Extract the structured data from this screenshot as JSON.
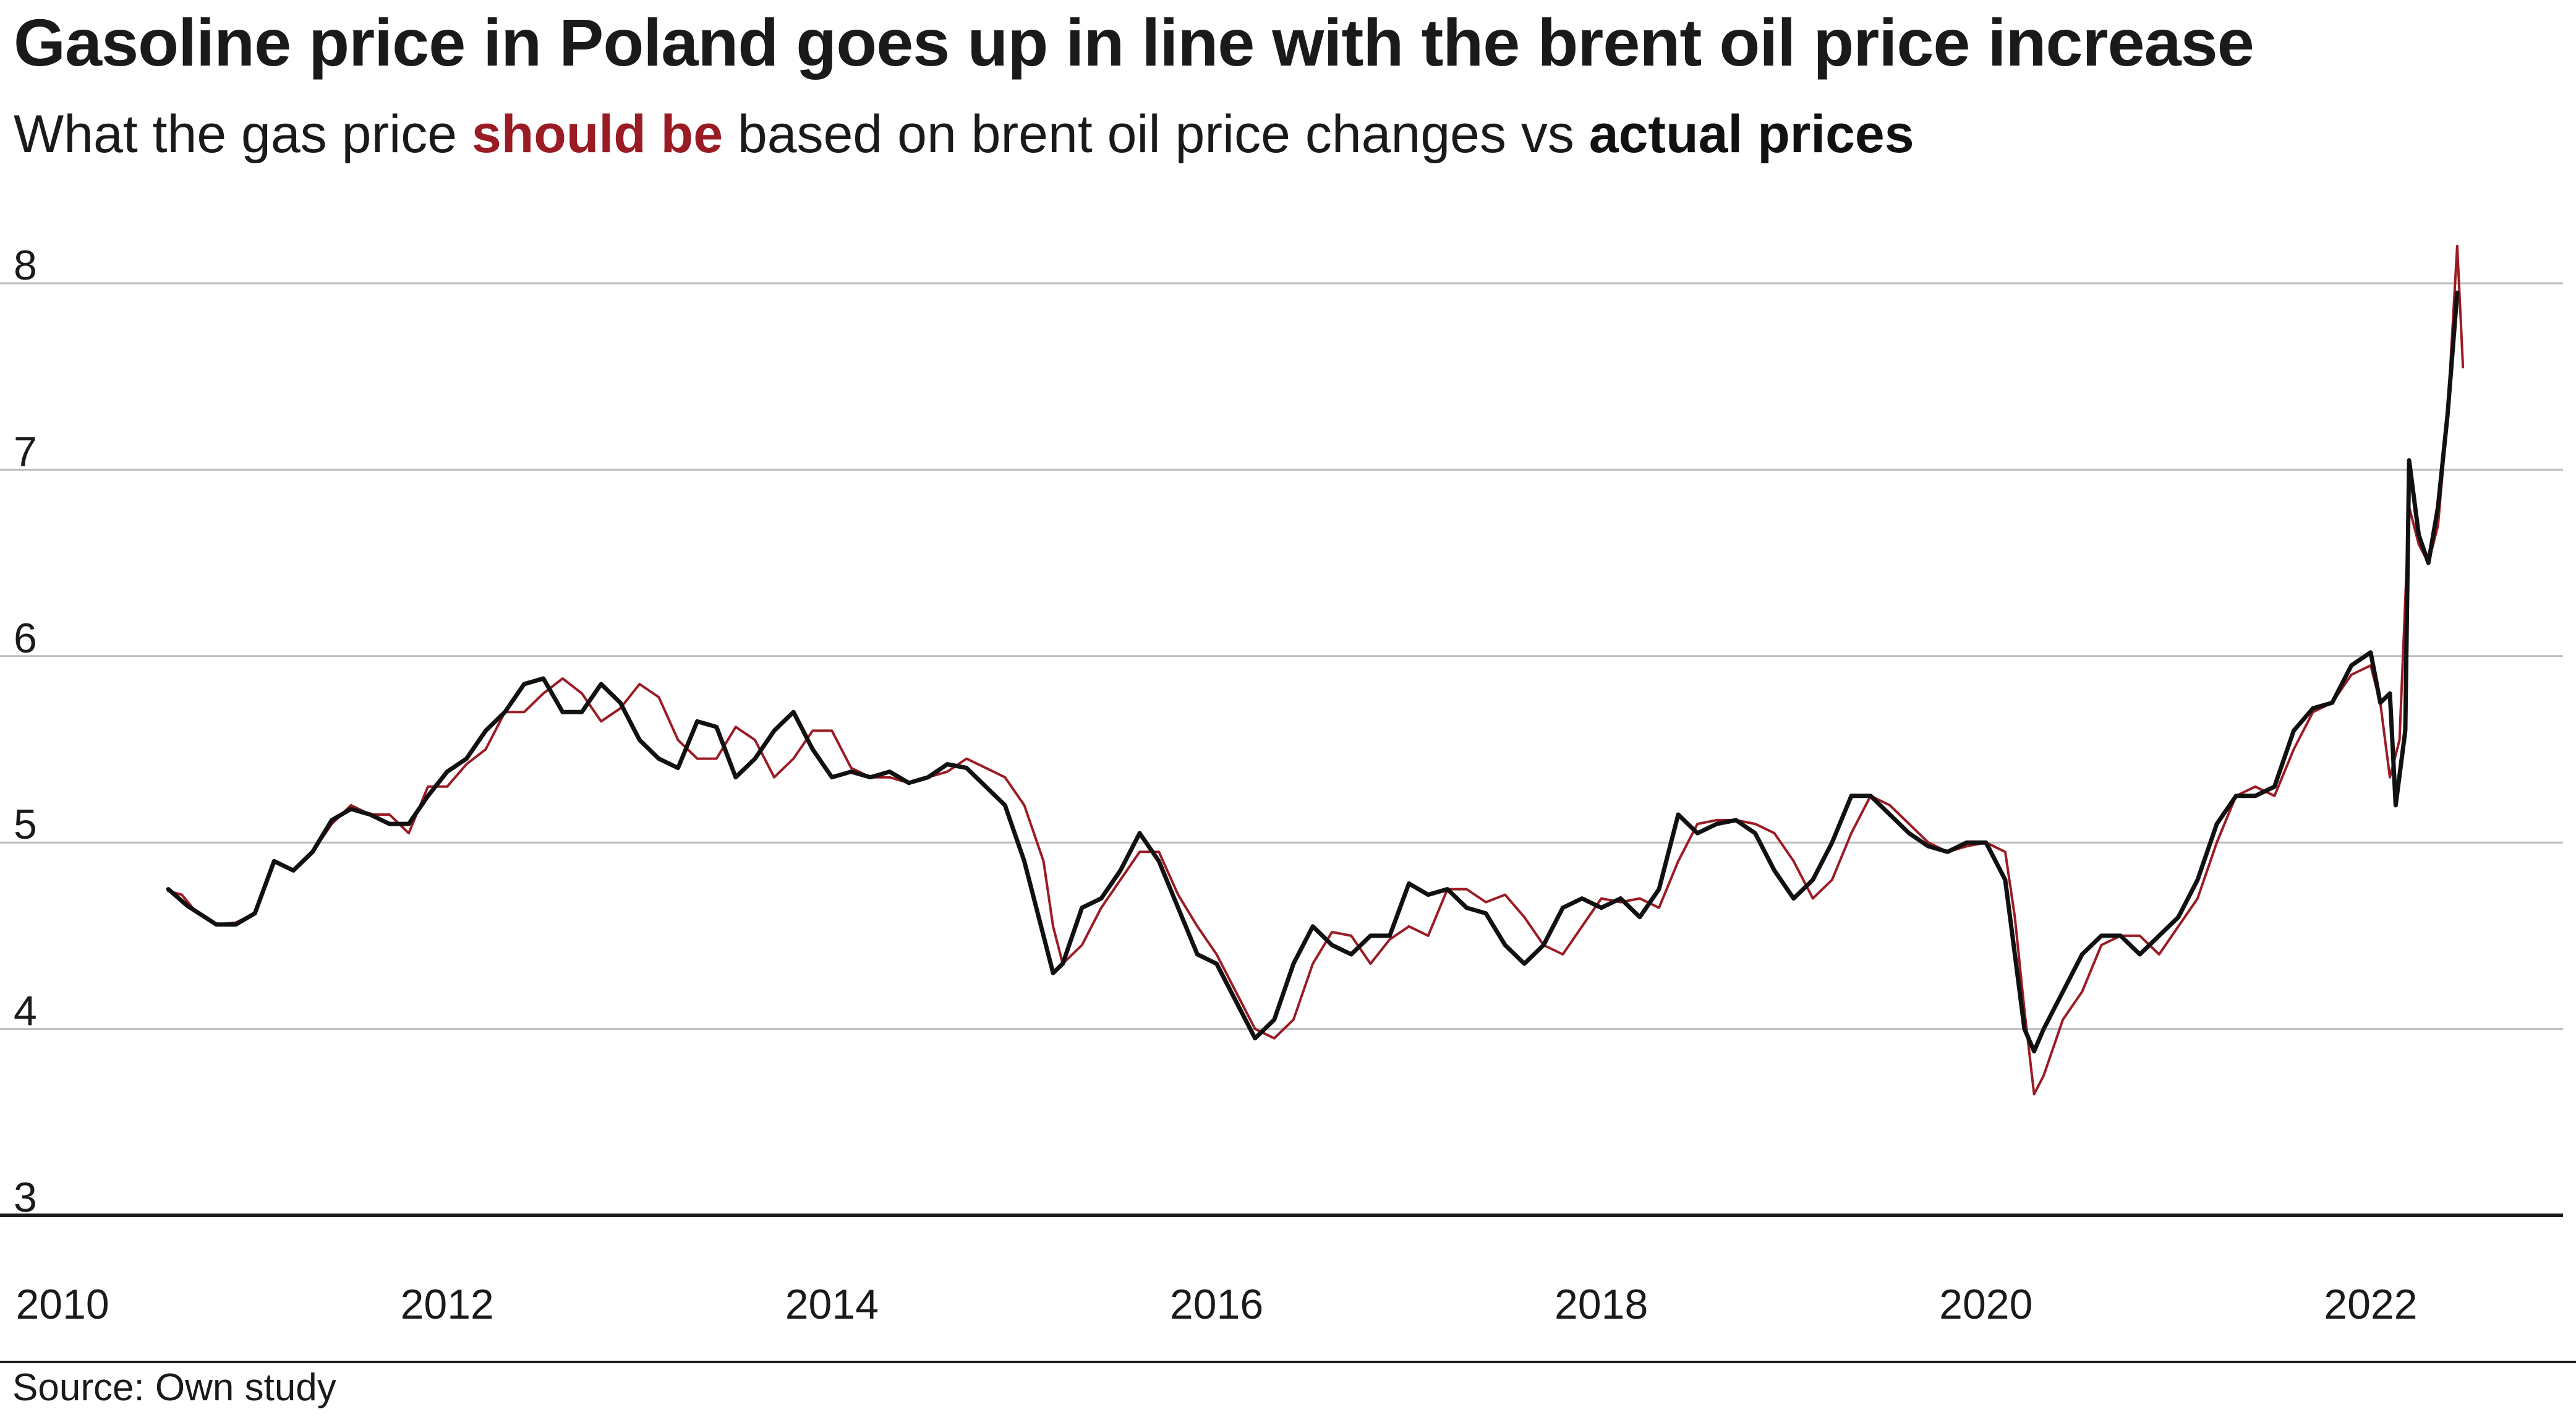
{
  "title": "Gasoline price in Poland goes up in line with the brent oil price increase",
  "subtitle": {
    "pre": "What the gas price ",
    "highlight": "should be",
    "mid": " based on brent oil price changes vs ",
    "emphasis": "actual prices"
  },
  "colors": {
    "should_be": "#9b1b24",
    "actual": "#111111",
    "grid": "#bdbdbd",
    "axis": "#1a1a1a"
  },
  "source": "Source: Own study",
  "chart_data": {
    "type": "line",
    "xlim": [
      2009.9,
      2023.0
    ],
    "ylim": [
      3,
      8
    ],
    "x_ticks": [
      "2010",
      "2012",
      "2014",
      "2016",
      "2018",
      "2020",
      "2022"
    ],
    "y_ticks": [
      "3",
      "4",
      "5",
      "6",
      "7",
      "8"
    ],
    "grid": "horizontal",
    "legend": "in subtitle",
    "series": [
      {
        "name": "should be",
        "color": "#9b1b24",
        "points": [
          [
            2010.55,
            4.74
          ],
          [
            2010.62,
            4.72
          ],
          [
            2010.7,
            4.62
          ],
          [
            2010.8,
            4.56
          ],
          [
            2010.9,
            4.57
          ],
          [
            2011.0,
            4.62
          ],
          [
            2011.1,
            4.9
          ],
          [
            2011.2,
            4.85
          ],
          [
            2011.3,
            4.95
          ],
          [
            2011.4,
            5.1
          ],
          [
            2011.5,
            5.2
          ],
          [
            2011.6,
            5.15
          ],
          [
            2011.7,
            5.15
          ],
          [
            2011.8,
            5.05
          ],
          [
            2011.9,
            5.3
          ],
          [
            2012.0,
            5.3
          ],
          [
            2012.1,
            5.42
          ],
          [
            2012.2,
            5.5
          ],
          [
            2012.3,
            5.7
          ],
          [
            2012.4,
            5.7
          ],
          [
            2012.5,
            5.8
          ],
          [
            2012.6,
            5.88
          ],
          [
            2012.7,
            5.8
          ],
          [
            2012.8,
            5.65
          ],
          [
            2012.9,
            5.72
          ],
          [
            2013.0,
            5.85
          ],
          [
            2013.1,
            5.78
          ],
          [
            2013.2,
            5.55
          ],
          [
            2013.3,
            5.45
          ],
          [
            2013.4,
            5.45
          ],
          [
            2013.5,
            5.62
          ],
          [
            2013.6,
            5.55
          ],
          [
            2013.7,
            5.35
          ],
          [
            2013.8,
            5.45
          ],
          [
            2013.9,
            5.6
          ],
          [
            2014.0,
            5.6
          ],
          [
            2014.1,
            5.4
          ],
          [
            2014.2,
            5.35
          ],
          [
            2014.3,
            5.35
          ],
          [
            2014.4,
            5.32
          ],
          [
            2014.5,
            5.35
          ],
          [
            2014.6,
            5.38
          ],
          [
            2014.7,
            5.45
          ],
          [
            2014.8,
            5.4
          ],
          [
            2014.9,
            5.35
          ],
          [
            2015.0,
            5.2
          ],
          [
            2015.1,
            4.9
          ],
          [
            2015.15,
            4.55
          ],
          [
            2015.2,
            4.35
          ],
          [
            2015.3,
            4.45
          ],
          [
            2015.4,
            4.65
          ],
          [
            2015.5,
            4.8
          ],
          [
            2015.6,
            4.95
          ],
          [
            2015.7,
            4.95
          ],
          [
            2015.8,
            4.72
          ],
          [
            2015.9,
            4.55
          ],
          [
            2016.0,
            4.4
          ],
          [
            2016.1,
            4.2
          ],
          [
            2016.2,
            4.0
          ],
          [
            2016.3,
            3.95
          ],
          [
            2016.4,
            4.05
          ],
          [
            2016.5,
            4.35
          ],
          [
            2016.6,
            4.52
          ],
          [
            2016.7,
            4.5
          ],
          [
            2016.8,
            4.35
          ],
          [
            2016.9,
            4.48
          ],
          [
            2017.0,
            4.55
          ],
          [
            2017.1,
            4.5
          ],
          [
            2017.2,
            4.75
          ],
          [
            2017.3,
            4.75
          ],
          [
            2017.4,
            4.68
          ],
          [
            2017.5,
            4.72
          ],
          [
            2017.6,
            4.6
          ],
          [
            2017.7,
            4.45
          ],
          [
            2017.8,
            4.4
          ],
          [
            2017.9,
            4.55
          ],
          [
            2018.0,
            4.7
          ],
          [
            2018.1,
            4.68
          ],
          [
            2018.2,
            4.7
          ],
          [
            2018.3,
            4.65
          ],
          [
            2018.4,
            4.9
          ],
          [
            2018.5,
            5.1
          ],
          [
            2018.6,
            5.12
          ],
          [
            2018.7,
            5.12
          ],
          [
            2018.8,
            5.1
          ],
          [
            2018.9,
            5.05
          ],
          [
            2019.0,
            4.9
          ],
          [
            2019.1,
            4.7
          ],
          [
            2019.2,
            4.8
          ],
          [
            2019.3,
            5.05
          ],
          [
            2019.4,
            5.25
          ],
          [
            2019.5,
            5.2
          ],
          [
            2019.6,
            5.1
          ],
          [
            2019.7,
            5.0
          ],
          [
            2019.8,
            4.95
          ],
          [
            2019.9,
            4.98
          ],
          [
            2020.0,
            5.0
          ],
          [
            2020.1,
            4.95
          ],
          [
            2020.15,
            4.6
          ],
          [
            2020.2,
            4.1
          ],
          [
            2020.25,
            3.65
          ],
          [
            2020.3,
            3.75
          ],
          [
            2020.4,
            4.05
          ],
          [
            2020.5,
            4.2
          ],
          [
            2020.6,
            4.45
          ],
          [
            2020.7,
            4.5
          ],
          [
            2020.8,
            4.5
          ],
          [
            2020.9,
            4.4
          ],
          [
            2021.0,
            4.55
          ],
          [
            2021.1,
            4.7
          ],
          [
            2021.2,
            5.0
          ],
          [
            2021.3,
            5.25
          ],
          [
            2021.4,
            5.3
          ],
          [
            2021.5,
            5.25
          ],
          [
            2021.6,
            5.5
          ],
          [
            2021.7,
            5.7
          ],
          [
            2021.8,
            5.75
          ],
          [
            2021.9,
            5.9
          ],
          [
            2022.0,
            5.95
          ],
          [
            2022.05,
            5.75
          ],
          [
            2022.1,
            5.35
          ],
          [
            2022.15,
            5.55
          ],
          [
            2022.2,
            6.8
          ],
          [
            2022.25,
            6.6
          ],
          [
            2022.3,
            6.5
          ],
          [
            2022.35,
            6.7
          ],
          [
            2022.4,
            7.3
          ],
          [
            2022.45,
            8.2
          ],
          [
            2022.48,
            7.55
          ]
        ]
      },
      {
        "name": "actual prices",
        "color": "#111111",
        "points": [
          [
            2010.55,
            4.75
          ],
          [
            2010.65,
            4.66
          ],
          [
            2010.8,
            4.56
          ],
          [
            2010.9,
            4.56
          ],
          [
            2011.0,
            4.62
          ],
          [
            2011.1,
            4.9
          ],
          [
            2011.2,
            4.85
          ],
          [
            2011.3,
            4.95
          ],
          [
            2011.4,
            5.12
          ],
          [
            2011.5,
            5.18
          ],
          [
            2011.6,
            5.15
          ],
          [
            2011.7,
            5.1
          ],
          [
            2011.8,
            5.1
          ],
          [
            2011.9,
            5.25
          ],
          [
            2012.0,
            5.38
          ],
          [
            2012.1,
            5.45
          ],
          [
            2012.2,
            5.6
          ],
          [
            2012.3,
            5.7
          ],
          [
            2012.4,
            5.85
          ],
          [
            2012.5,
            5.88
          ],
          [
            2012.6,
            5.7
          ],
          [
            2012.7,
            5.7
          ],
          [
            2012.8,
            5.85
          ],
          [
            2012.9,
            5.75
          ],
          [
            2013.0,
            5.55
          ],
          [
            2013.1,
            5.45
          ],
          [
            2013.2,
            5.4
          ],
          [
            2013.3,
            5.65
          ],
          [
            2013.4,
            5.62
          ],
          [
            2013.5,
            5.35
          ],
          [
            2013.6,
            5.45
          ],
          [
            2013.7,
            5.6
          ],
          [
            2013.8,
            5.7
          ],
          [
            2013.9,
            5.5
          ],
          [
            2014.0,
            5.35
          ],
          [
            2014.1,
            5.38
          ],
          [
            2014.2,
            5.35
          ],
          [
            2014.3,
            5.38
          ],
          [
            2014.4,
            5.32
          ],
          [
            2014.5,
            5.35
          ],
          [
            2014.6,
            5.42
          ],
          [
            2014.7,
            5.4
          ],
          [
            2014.8,
            5.3
          ],
          [
            2014.9,
            5.2
          ],
          [
            2015.0,
            4.9
          ],
          [
            2015.1,
            4.5
          ],
          [
            2015.15,
            4.3
          ],
          [
            2015.2,
            4.35
          ],
          [
            2015.3,
            4.65
          ],
          [
            2015.4,
            4.7
          ],
          [
            2015.5,
            4.85
          ],
          [
            2015.6,
            5.05
          ],
          [
            2015.7,
            4.9
          ],
          [
            2015.8,
            4.65
          ],
          [
            2015.9,
            4.4
          ],
          [
            2016.0,
            4.35
          ],
          [
            2016.1,
            4.15
          ],
          [
            2016.2,
            3.95
          ],
          [
            2016.3,
            4.05
          ],
          [
            2016.4,
            4.35
          ],
          [
            2016.5,
            4.55
          ],
          [
            2016.6,
            4.45
          ],
          [
            2016.7,
            4.4
          ],
          [
            2016.8,
            4.5
          ],
          [
            2016.9,
            4.5
          ],
          [
            2017.0,
            4.78
          ],
          [
            2017.1,
            4.72
          ],
          [
            2017.2,
            4.75
          ],
          [
            2017.3,
            4.65
          ],
          [
            2017.4,
            4.62
          ],
          [
            2017.5,
            4.45
          ],
          [
            2017.6,
            4.35
          ],
          [
            2017.7,
            4.45
          ],
          [
            2017.8,
            4.65
          ],
          [
            2017.9,
            4.7
          ],
          [
            2018.0,
            4.65
          ],
          [
            2018.1,
            4.7
          ],
          [
            2018.2,
            4.6
          ],
          [
            2018.3,
            4.75
          ],
          [
            2018.4,
            5.15
          ],
          [
            2018.5,
            5.05
          ],
          [
            2018.6,
            5.1
          ],
          [
            2018.7,
            5.12
          ],
          [
            2018.8,
            5.05
          ],
          [
            2018.9,
            4.85
          ],
          [
            2019.0,
            4.7
          ],
          [
            2019.1,
            4.8
          ],
          [
            2019.2,
            5.0
          ],
          [
            2019.3,
            5.25
          ],
          [
            2019.4,
            5.25
          ],
          [
            2019.5,
            5.15
          ],
          [
            2019.6,
            5.05
          ],
          [
            2019.7,
            4.98
          ],
          [
            2019.8,
            4.95
          ],
          [
            2019.9,
            5.0
          ],
          [
            2020.0,
            5.0
          ],
          [
            2020.1,
            4.8
          ],
          [
            2020.15,
            4.4
          ],
          [
            2020.2,
            4.0
          ],
          [
            2020.25,
            3.88
          ],
          [
            2020.3,
            4.0
          ],
          [
            2020.4,
            4.2
          ],
          [
            2020.5,
            4.4
          ],
          [
            2020.6,
            4.5
          ],
          [
            2020.7,
            4.5
          ],
          [
            2020.8,
            4.4
          ],
          [
            2020.9,
            4.5
          ],
          [
            2021.0,
            4.6
          ],
          [
            2021.1,
            4.8
          ],
          [
            2021.2,
            5.1
          ],
          [
            2021.3,
            5.25
          ],
          [
            2021.4,
            5.25
          ],
          [
            2021.5,
            5.3
          ],
          [
            2021.6,
            5.6
          ],
          [
            2021.7,
            5.72
          ],
          [
            2021.8,
            5.75
          ],
          [
            2021.9,
            5.95
          ],
          [
            2022.0,
            6.02
          ],
          [
            2022.05,
            5.75
          ],
          [
            2022.1,
            5.8
          ],
          [
            2022.13,
            5.2
          ],
          [
            2022.18,
            5.6
          ],
          [
            2022.2,
            7.05
          ],
          [
            2022.25,
            6.65
          ],
          [
            2022.3,
            6.5
          ],
          [
            2022.35,
            6.8
          ],
          [
            2022.4,
            7.3
          ],
          [
            2022.45,
            7.95
          ]
        ]
      }
    ]
  }
}
